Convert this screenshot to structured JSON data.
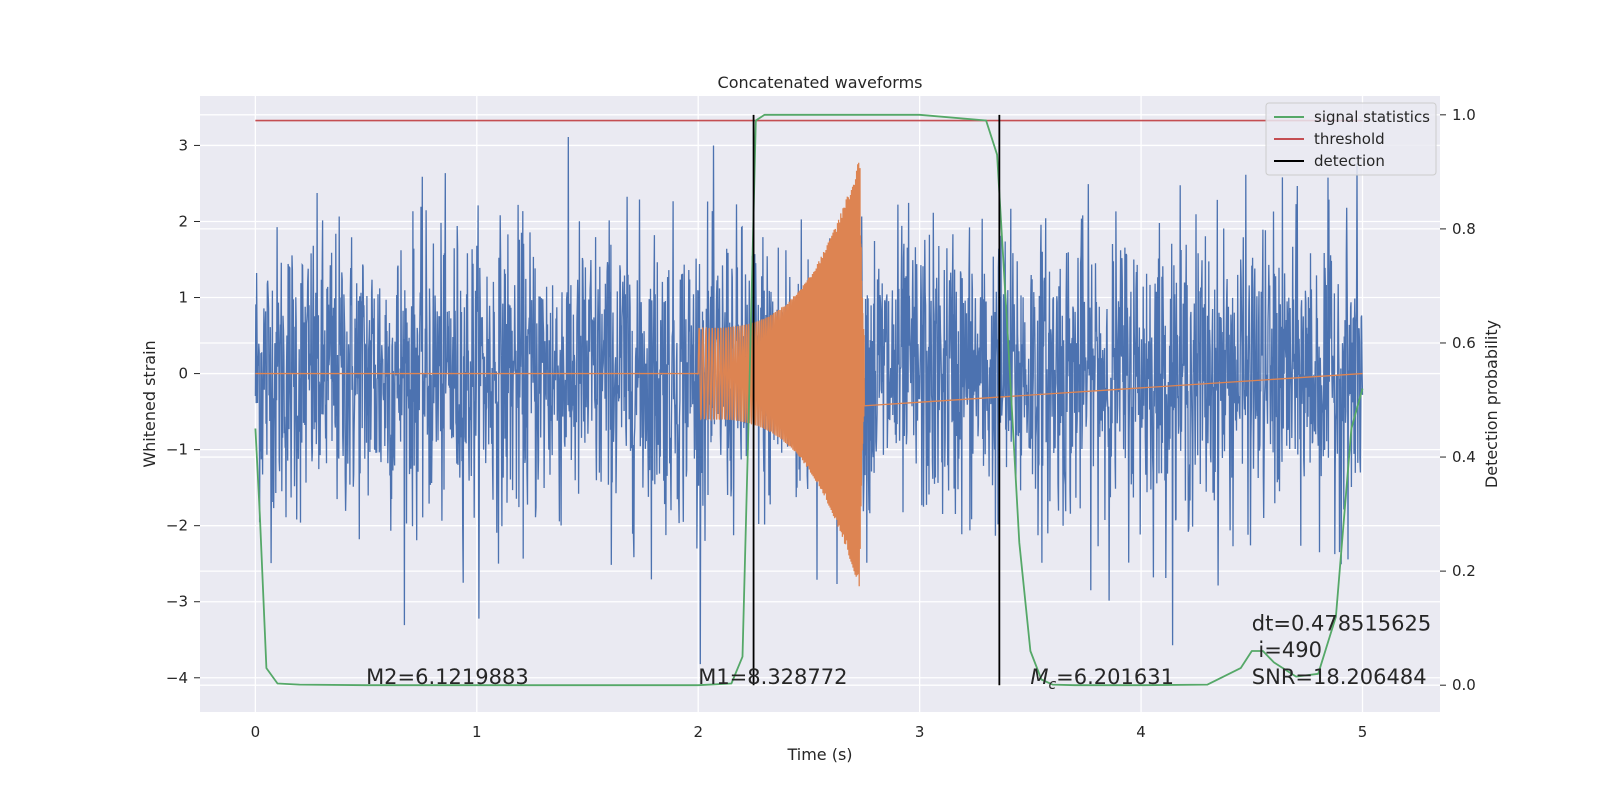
{
  "chart_data": {
    "type": "line",
    "title": "Concatenated waveforms",
    "xlabel": "Time (s)",
    "ylabel": "Whitened strain",
    "y2label": "Detection probability",
    "xlim": [
      -0.25,
      5.35
    ],
    "ylim": [
      -4.45,
      3.65
    ],
    "y2lim": [
      -0.047,
      1.033
    ],
    "xticks": [
      0,
      1,
      2,
      3,
      4,
      5
    ],
    "yticks": [
      -4,
      -3,
      -2,
      -1,
      0,
      1,
      2,
      3
    ],
    "y2ticks": [
      0.0,
      0.2,
      0.4,
      0.6,
      0.8,
      1.0
    ],
    "y2tick_labels": [
      "0.0",
      "0.2",
      "0.4",
      "0.6",
      "0.8",
      "1.0"
    ],
    "grid": true,
    "legend_position": "top-right",
    "series": [
      {
        "name": "",
        "kind": "noise",
        "color": "#4c72b0",
        "x_range": [
          0,
          5
        ],
        "approx_envelope": [
          -3.0,
          3.5
        ]
      },
      {
        "name": "",
        "kind": "chirp",
        "color": "#dd8452",
        "x_range": [
          2.0,
          2.75
        ],
        "start_amplitude": 0.6,
        "peak_amplitude": 2.85,
        "peak_time": 2.73
      },
      {
        "name": "signal statistics",
        "color": "#55a868",
        "axis": "right",
        "x": [
          0,
          0.02,
          0.05,
          0.1,
          0.2,
          0.5,
          1.0,
          1.5,
          2.0,
          2.15,
          2.2,
          2.23,
          2.26,
          2.3,
          2.5,
          3.0,
          3.3,
          3.35,
          3.4,
          3.45,
          3.5,
          3.55,
          3.6,
          3.7,
          4.0,
          4.3,
          4.45,
          4.5,
          4.55,
          4.6,
          4.7,
          4.8,
          4.88,
          4.95,
          5.0
        ],
        "y": [
          0.45,
          0.3,
          0.03,
          0.003,
          0.001,
          0.0,
          0.0,
          0.0,
          0.0,
          0.003,
          0.05,
          0.5,
          0.99,
          1.0,
          1.0,
          1.0,
          0.99,
          0.93,
          0.6,
          0.25,
          0.06,
          0.01,
          0.001,
          0.0,
          0.0,
          0.001,
          0.03,
          0.06,
          0.06,
          0.04,
          0.015,
          0.02,
          0.12,
          0.45,
          0.52
        ]
      },
      {
        "name": "threshold",
        "color": "#c44e52",
        "axis": "right",
        "x": [
          0,
          5
        ],
        "y": [
          0.99,
          0.99
        ]
      },
      {
        "name": "detection",
        "color": "#000000",
        "axis": "right",
        "vlines": [
          2.25,
          3.36
        ],
        "y_range": [
          0.0,
          1.0
        ]
      }
    ],
    "annotations": [
      {
        "text": "M2=6.1219883",
        "x": 0.5,
        "y": -4.0
      },
      {
        "text": "M1=8.328772",
        "x": 2.0,
        "y": -4.0
      },
      {
        "text": "=6.201631",
        "math_prefix": "Mc",
        "x": 3.5,
        "y": -4.0
      },
      {
        "text": "dt=0.478515625",
        "x": 4.5,
        "y": -3.3
      },
      {
        "text": "i=490",
        "x": 4.53,
        "y": -3.65
      },
      {
        "text": "SNR=18.206484",
        "x": 4.5,
        "y": -4.0
      }
    ]
  }
}
